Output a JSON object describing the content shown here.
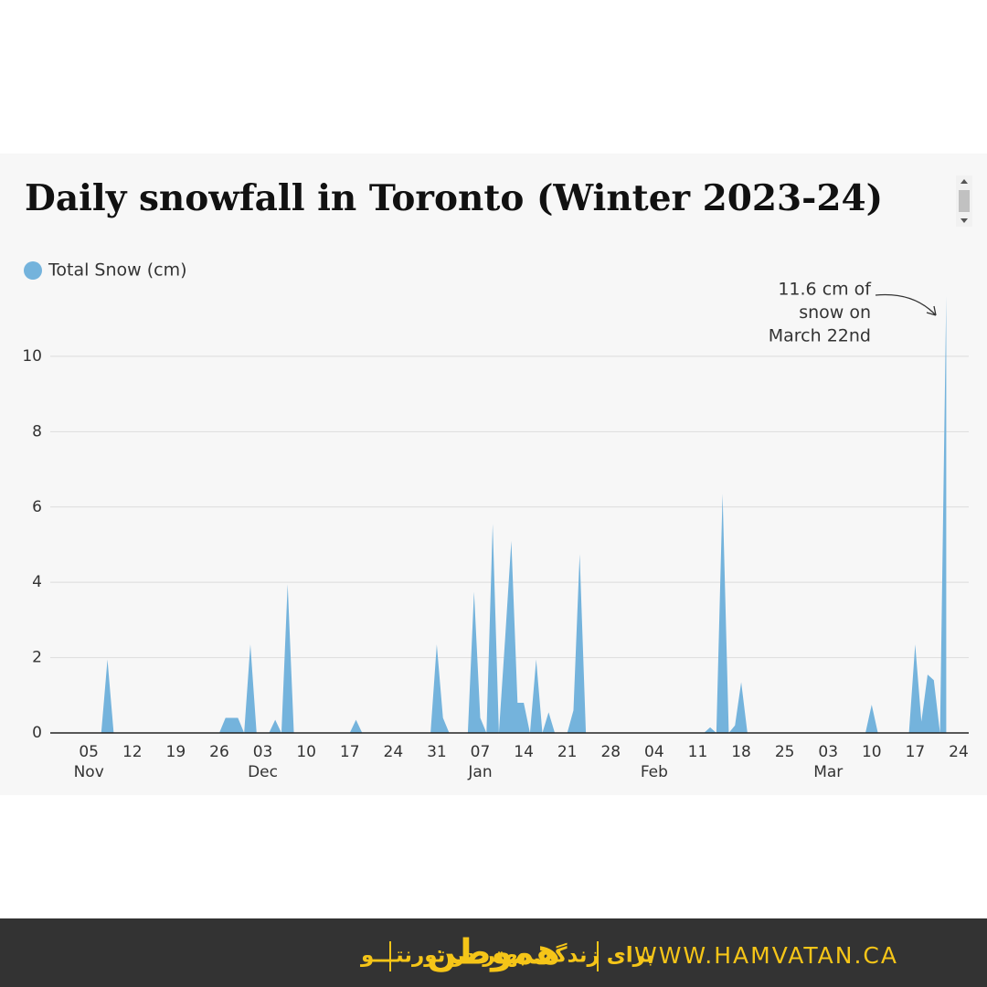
{
  "chart_data": {
    "type": "area",
    "title": "Daily snowfall in Toronto (Winter 2023-24)",
    "annotation": [
      "11.6 cm of",
      "snow on",
      "March 22nd"
    ],
    "categories": [
      null,
      null,
      null,
      null,
      "05",
      null,
      null,
      null,
      null,
      null,
      null,
      "12",
      null,
      null,
      null,
      null,
      null,
      null,
      "19",
      null,
      null,
      null,
      null,
      null,
      null,
      "26",
      null,
      null,
      null,
      null,
      null,
      null,
      "03",
      null,
      null,
      null,
      null,
      null,
      null,
      "10",
      null,
      null,
      null,
      null,
      null,
      null,
      "17",
      null,
      null,
      null,
      null,
      null,
      null,
      "24",
      null,
      null,
      null,
      null,
      null,
      null,
      "31",
      null,
      null,
      null,
      null,
      null,
      null,
      "07",
      null,
      null,
      null,
      null,
      null,
      null,
      "14",
      null,
      null,
      null,
      null,
      null,
      null,
      "21",
      null,
      null,
      null,
      null,
      null,
      null,
      "28",
      null,
      null,
      null,
      null,
      null,
      null,
      "04",
      null,
      null,
      null,
      null,
      null,
      null,
      "11",
      null,
      null,
      null,
      null,
      null,
      null,
      "18",
      null,
      null,
      null,
      null,
      null,
      null,
      "25",
      null,
      null,
      null,
      null,
      null,
      null,
      "03",
      null,
      null,
      null,
      null,
      null,
      null,
      "10",
      null,
      null,
      null,
      null,
      null,
      null,
      "17",
      null,
      null,
      null,
      null,
      null,
      null,
      "24"
    ],
    "months": [
      null,
      null,
      null,
      null,
      "Nov",
      null,
      null,
      null,
      null,
      null,
      null,
      null,
      null,
      null,
      null,
      null,
      null,
      null,
      null,
      null,
      null,
      null,
      null,
      null,
      null,
      null,
      null,
      null,
      null,
      null,
      null,
      null,
      "Dec",
      null,
      null,
      null,
      null,
      null,
      null,
      null,
      null,
      null,
      null,
      null,
      null,
      null,
      null,
      null,
      null,
      null,
      null,
      null,
      null,
      null,
      null,
      null,
      null,
      null,
      null,
      null,
      null,
      null,
      null,
      null,
      null,
      null,
      null,
      "Jan",
      null,
      null,
      null,
      null,
      null,
      null,
      null,
      null,
      null,
      null,
      null,
      null,
      null,
      null,
      null,
      null,
      null,
      null,
      null,
      null,
      null,
      null,
      null,
      null,
      null,
      null,
      null,
      "Feb",
      null,
      null,
      null,
      null,
      null,
      null,
      null,
      null,
      null,
      null,
      null,
      null,
      null,
      null,
      null,
      null,
      null,
      null,
      null,
      null,
      null,
      null,
      null,
      null,
      null,
      null,
      null,
      "Mar",
      null,
      null,
      null,
      null,
      null,
      null,
      null,
      null,
      null,
      null,
      null,
      null,
      null,
      null,
      null,
      null,
      null,
      null,
      null,
      null,
      null
    ],
    "series": [
      {
        "name": "Total Snow (cm)",
        "color": "#74b3dc",
        "values": [
          0,
          0,
          0,
          0,
          0,
          0,
          0,
          1.95,
          0,
          0,
          0,
          0,
          0,
          0,
          0,
          0,
          0,
          0,
          0,
          0,
          0,
          0,
          0,
          0,
          0,
          0,
          0.4,
          0.4,
          0.4,
          0,
          2.35,
          0,
          0,
          0,
          0.35,
          0,
          3.95,
          0,
          0,
          0,
          0,
          0,
          0,
          0,
          0,
          0,
          0,
          0.35,
          0,
          0,
          0,
          0,
          0,
          0,
          0,
          0,
          0,
          0,
          0,
          0,
          2.35,
          0.4,
          0,
          0,
          0,
          0,
          3.75,
          0.4,
          0,
          5.55,
          0,
          2.5,
          5.1,
          0.8,
          0.8,
          0,
          1.95,
          0,
          0.55,
          0,
          0,
          0,
          0.6,
          4.75,
          0,
          0,
          0,
          0,
          0,
          0,
          0,
          0,
          0,
          0,
          0,
          0,
          0,
          0,
          0,
          0,
          0,
          0,
          0,
          0,
          0.15,
          0,
          6.35,
          0,
          0.2,
          1.35,
          0,
          0,
          0,
          0,
          0,
          0,
          0,
          0,
          0,
          0,
          0,
          0,
          0,
          0,
          0,
          0,
          0,
          0,
          0,
          0,
          0.75,
          0,
          0,
          0,
          0,
          0,
          0,
          2.35,
          0.3,
          1.55,
          1.4,
          0,
          11.6,
          null,
          null
        ]
      }
    ],
    "ylim": [
      0,
      11.6
    ],
    "yticks": [
      0,
      2,
      4,
      6,
      8,
      10
    ],
    "grid": true
  },
  "footer": {
    "tagline": "برای زندگی بهتر در تورنتـــو",
    "logo": "هموطن",
    "url": "WWW.HAMVATAN.CA"
  }
}
